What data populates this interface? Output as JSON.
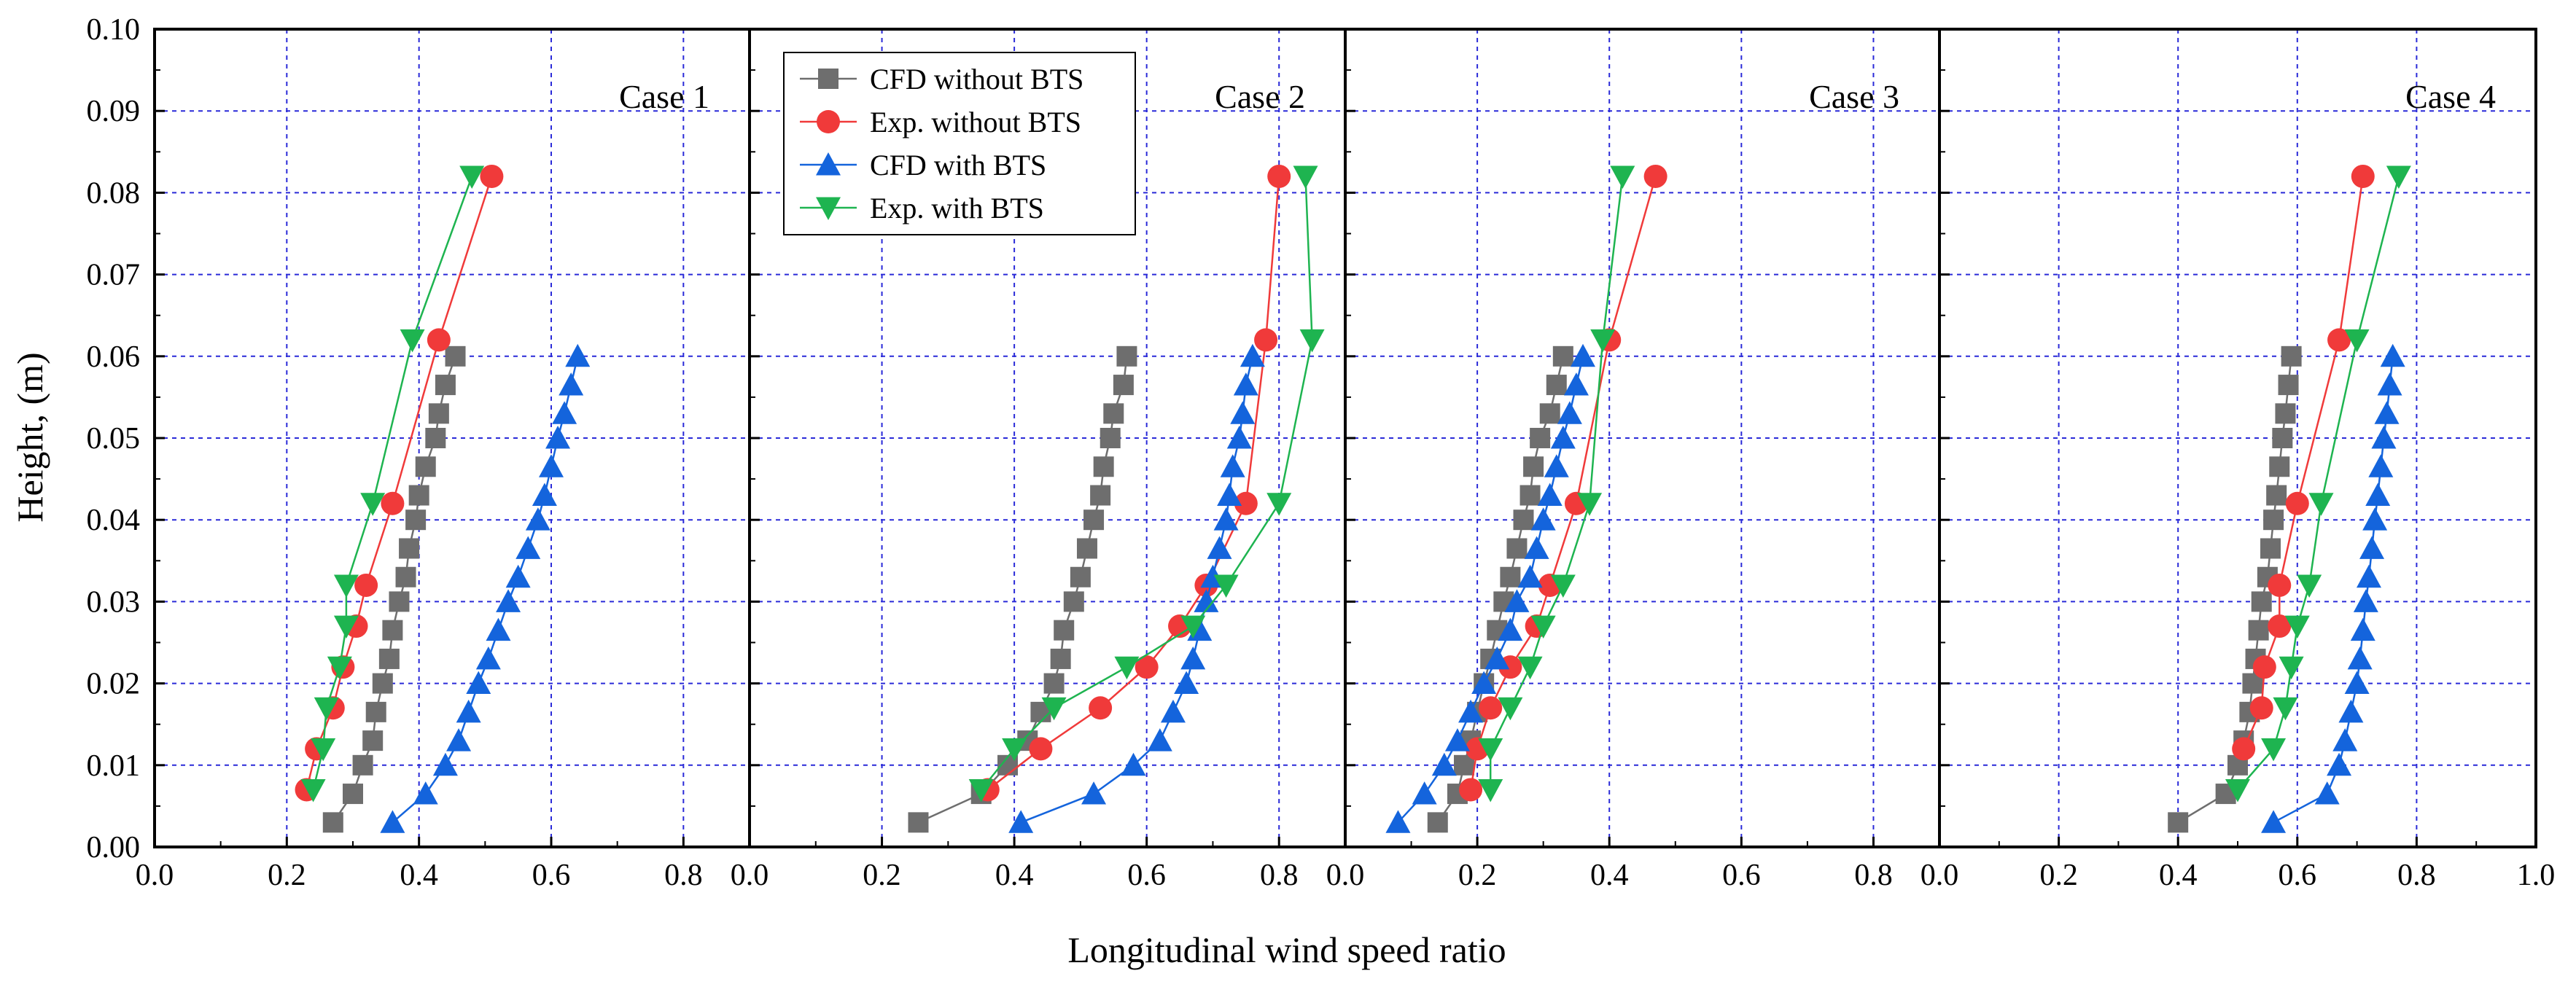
{
  "chart_data": {
    "type": "line",
    "ylabel": "Height, (m)",
    "xlabel": "Longitudinal wind speed ratio",
    "ylim": [
      0,
      0.1
    ],
    "yticks": [
      "0.00",
      "0.01",
      "0.02",
      "0.03",
      "0.04",
      "0.05",
      "0.06",
      "0.07",
      "0.08",
      "0.09",
      "0.10"
    ],
    "legend": {
      "position": "top-left of Case 2 panel",
      "entries": [
        {
          "key": "cfd_without",
          "label": "CFD without BTS",
          "color": "#6e6e6e",
          "marker": "square"
        },
        {
          "key": "exp_without",
          "label": "Exp. without BTS",
          "color": "#f03a3a",
          "marker": "circle"
        },
        {
          "key": "cfd_with",
          "label": "CFD  with BTS",
          "color": "#1464dc",
          "marker": "triangle-up"
        },
        {
          "key": "exp_with",
          "label": "Exp. with BTS",
          "color": "#1eb450",
          "marker": "triangle-down"
        }
      ]
    },
    "panels": [
      {
        "title": "Case 1",
        "xlim": [
          0,
          0.9
        ],
        "xticks": [
          "0.0",
          "0.2",
          "0.4",
          "0.6",
          "0.8"
        ],
        "series": {
          "cfd_without": [
            [
              0.27,
              0.003
            ],
            [
              0.3,
              0.0065
            ],
            [
              0.315,
              0.01
            ],
            [
              0.33,
              0.013
            ],
            [
              0.335,
              0.0165
            ],
            [
              0.345,
              0.02
            ],
            [
              0.355,
              0.023
            ],
            [
              0.36,
              0.0265
            ],
            [
              0.37,
              0.03
            ],
            [
              0.38,
              0.033
            ],
            [
              0.385,
              0.0365
            ],
            [
              0.395,
              0.04
            ],
            [
              0.4,
              0.043
            ],
            [
              0.41,
              0.0465
            ],
            [
              0.425,
              0.05
            ],
            [
              0.43,
              0.053
            ],
            [
              0.44,
              0.0565
            ],
            [
              0.455,
              0.06
            ]
          ],
          "exp_without": [
            [
              0.23,
              0.007
            ],
            [
              0.245,
              0.012
            ],
            [
              0.27,
              0.017
            ],
            [
              0.285,
              0.022
            ],
            [
              0.305,
              0.027
            ],
            [
              0.32,
              0.032
            ],
            [
              0.36,
              0.042
            ],
            [
              0.43,
              0.062
            ],
            [
              0.51,
              0.082
            ]
          ],
          "cfd_with": [
            [
              0.36,
              0.003
            ],
            [
              0.41,
              0.0065
            ],
            [
              0.44,
              0.01
            ],
            [
              0.46,
              0.013
            ],
            [
              0.475,
              0.0165
            ],
            [
              0.49,
              0.02
            ],
            [
              0.505,
              0.023
            ],
            [
              0.52,
              0.0265
            ],
            [
              0.535,
              0.03
            ],
            [
              0.55,
              0.033
            ],
            [
              0.565,
              0.0365
            ],
            [
              0.58,
              0.04
            ],
            [
              0.59,
              0.043
            ],
            [
              0.6,
              0.0465
            ],
            [
              0.61,
              0.05
            ],
            [
              0.62,
              0.053
            ],
            [
              0.63,
              0.0565
            ],
            [
              0.64,
              0.06
            ]
          ],
          "exp_with": [
            [
              0.24,
              0.007
            ],
            [
              0.255,
              0.012
            ],
            [
              0.26,
              0.017
            ],
            [
              0.28,
              0.022
            ],
            [
              0.29,
              0.027
            ],
            [
              0.29,
              0.032
            ],
            [
              0.33,
              0.042
            ],
            [
              0.39,
              0.062
            ],
            [
              0.48,
              0.082
            ]
          ]
        }
      },
      {
        "title": "Case 2",
        "xlim": [
          0,
          0.9
        ],
        "xticks": [
          "0.0",
          "0.2",
          "0.4",
          "0.6",
          "0.8"
        ],
        "series": {
          "cfd_without": [
            [
              0.255,
              0.003
            ],
            [
              0.35,
              0.0065
            ],
            [
              0.39,
              0.01
            ],
            [
              0.42,
              0.013
            ],
            [
              0.44,
              0.0165
            ],
            [
              0.46,
              0.02
            ],
            [
              0.47,
              0.023
            ],
            [
              0.475,
              0.0265
            ],
            [
              0.49,
              0.03
            ],
            [
              0.5,
              0.033
            ],
            [
              0.51,
              0.0365
            ],
            [
              0.52,
              0.04
            ],
            [
              0.53,
              0.043
            ],
            [
              0.535,
              0.0465
            ],
            [
              0.545,
              0.05
            ],
            [
              0.55,
              0.053
            ],
            [
              0.565,
              0.0565
            ],
            [
              0.57,
              0.06
            ]
          ],
          "exp_without": [
            [
              0.36,
              0.007
            ],
            [
              0.44,
              0.012
            ],
            [
              0.53,
              0.017
            ],
            [
              0.6,
              0.022
            ],
            [
              0.65,
              0.027
            ],
            [
              0.69,
              0.032
            ],
            [
              0.75,
              0.042
            ],
            [
              0.78,
              0.062
            ],
            [
              0.8,
              0.082
            ]
          ],
          "cfd_with": [
            [
              0.41,
              0.003
            ],
            [
              0.52,
              0.0065
            ],
            [
              0.58,
              0.01
            ],
            [
              0.62,
              0.013
            ],
            [
              0.64,
              0.0165
            ],
            [
              0.66,
              0.02
            ],
            [
              0.67,
              0.023
            ],
            [
              0.68,
              0.0265
            ],
            [
              0.69,
              0.03
            ],
            [
              0.7,
              0.033
            ],
            [
              0.71,
              0.0365
            ],
            [
              0.72,
              0.04
            ],
            [
              0.725,
              0.043
            ],
            [
              0.73,
              0.0465
            ],
            [
              0.74,
              0.05
            ],
            [
              0.745,
              0.053
            ],
            [
              0.75,
              0.0565
            ],
            [
              0.76,
              0.06
            ]
          ],
          "exp_with": [
            [
              0.35,
              0.007
            ],
            [
              0.4,
              0.012
            ],
            [
              0.46,
              0.017
            ],
            [
              0.57,
              0.022
            ],
            [
              0.67,
              0.027
            ],
            [
              0.72,
              0.032
            ],
            [
              0.8,
              0.042
            ],
            [
              0.85,
              0.062
            ],
            [
              0.84,
              0.082
            ]
          ]
        }
      },
      {
        "title": "Case 3",
        "xlim": [
          0,
          0.9
        ],
        "xticks": [
          "0.0",
          "0.2",
          "0.4",
          "0.6",
          "0.8"
        ],
        "series": {
          "cfd_without": [
            [
              0.14,
              0.003
            ],
            [
              0.17,
              0.0065
            ],
            [
              0.18,
              0.01
            ],
            [
              0.19,
              0.013
            ],
            [
              0.2,
              0.0165
            ],
            [
              0.21,
              0.02
            ],
            [
              0.22,
              0.023
            ],
            [
              0.23,
              0.0265
            ],
            [
              0.24,
              0.03
            ],
            [
              0.25,
              0.033
            ],
            [
              0.26,
              0.0365
            ],
            [
              0.27,
              0.04
            ],
            [
              0.28,
              0.043
            ],
            [
              0.285,
              0.0465
            ],
            [
              0.295,
              0.05
            ],
            [
              0.31,
              0.053
            ],
            [
              0.32,
              0.0565
            ],
            [
              0.33,
              0.06
            ]
          ],
          "exp_without": [
            [
              0.19,
              0.007
            ],
            [
              0.2,
              0.012
            ],
            [
              0.22,
              0.017
            ],
            [
              0.25,
              0.022
            ],
            [
              0.29,
              0.027
            ],
            [
              0.31,
              0.032
            ],
            [
              0.35,
              0.042
            ],
            [
              0.4,
              0.062
            ],
            [
              0.47,
              0.082
            ]
          ],
          "cfd_with": [
            [
              0.08,
              0.003
            ],
            [
              0.12,
              0.0065
            ],
            [
              0.15,
              0.01
            ],
            [
              0.17,
              0.013
            ],
            [
              0.19,
              0.0165
            ],
            [
              0.21,
              0.02
            ],
            [
              0.23,
              0.023
            ],
            [
              0.25,
              0.0265
            ],
            [
              0.26,
              0.03
            ],
            [
              0.28,
              0.033
            ],
            [
              0.29,
              0.0365
            ],
            [
              0.3,
              0.04
            ],
            [
              0.31,
              0.043
            ],
            [
              0.32,
              0.0465
            ],
            [
              0.33,
              0.05
            ],
            [
              0.34,
              0.053
            ],
            [
              0.35,
              0.0565
            ],
            [
              0.36,
              0.06
            ]
          ],
          "exp_with": [
            [
              0.22,
              0.007
            ],
            [
              0.22,
              0.012
            ],
            [
              0.25,
              0.017
            ],
            [
              0.28,
              0.022
            ],
            [
              0.3,
              0.027
            ],
            [
              0.33,
              0.032
            ],
            [
              0.37,
              0.042
            ],
            [
              0.39,
              0.062
            ],
            [
              0.42,
              0.082
            ]
          ]
        }
      },
      {
        "title": "Case 4",
        "xlim": [
          0,
          1.0
        ],
        "xticks": [
          "0.0",
          "0.2",
          "0.4",
          "0.6",
          "0.8",
          "1.0"
        ],
        "series": {
          "cfd_without": [
            [
              0.4,
              0.003
            ],
            [
              0.48,
              0.0065
            ],
            [
              0.5,
              0.01
            ],
            [
              0.51,
              0.013
            ],
            [
              0.52,
              0.0165
            ],
            [
              0.525,
              0.02
            ],
            [
              0.53,
              0.023
            ],
            [
              0.535,
              0.0265
            ],
            [
              0.54,
              0.03
            ],
            [
              0.55,
              0.033
            ],
            [
              0.555,
              0.0365
            ],
            [
              0.56,
              0.04
            ],
            [
              0.565,
              0.043
            ],
            [
              0.57,
              0.0465
            ],
            [
              0.575,
              0.05
            ],
            [
              0.58,
              0.053
            ],
            [
              0.585,
              0.0565
            ],
            [
              0.59,
              0.06
            ]
          ],
          "exp_without": [
            [
              0.51,
              0.012
            ],
            [
              0.54,
              0.017
            ],
            [
              0.545,
              0.022
            ],
            [
              0.57,
              0.027
            ],
            [
              0.57,
              0.032
            ],
            [
              0.6,
              0.042
            ],
            [
              0.67,
              0.062
            ],
            [
              0.71,
              0.082
            ]
          ],
          "cfd_with": [
            [
              0.56,
              0.003
            ],
            [
              0.65,
              0.0065
            ],
            [
              0.67,
              0.01
            ],
            [
              0.68,
              0.013
            ],
            [
              0.69,
              0.0165
            ],
            [
              0.7,
              0.02
            ],
            [
              0.705,
              0.023
            ],
            [
              0.71,
              0.0265
            ],
            [
              0.715,
              0.03
            ],
            [
              0.72,
              0.033
            ],
            [
              0.725,
              0.0365
            ],
            [
              0.73,
              0.04
            ],
            [
              0.735,
              0.043
            ],
            [
              0.74,
              0.0465
            ],
            [
              0.745,
              0.05
            ],
            [
              0.75,
              0.053
            ],
            [
              0.755,
              0.0565
            ],
            [
              0.76,
              0.06
            ]
          ],
          "exp_with": [
            [
              0.5,
              0.007
            ],
            [
              0.56,
              0.012
            ],
            [
              0.58,
              0.017
            ],
            [
              0.59,
              0.022
            ],
            [
              0.6,
              0.027
            ],
            [
              0.62,
              0.032
            ],
            [
              0.64,
              0.042
            ],
            [
              0.7,
              0.062
            ],
            [
              0.77,
              0.082
            ]
          ]
        }
      }
    ]
  }
}
